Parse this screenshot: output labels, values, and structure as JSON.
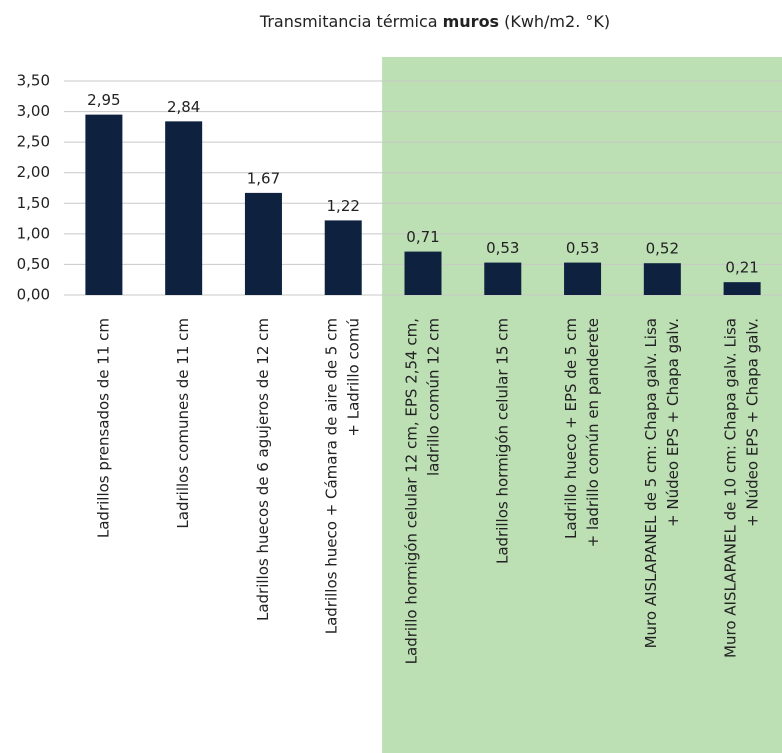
{
  "chart_data": {
    "type": "bar",
    "title": [
      "Transmitancia térmica",
      "muros",
      "(Kwh/m2. °K)"
    ],
    "categories": [
      [
        "Ladrillos prensados de 11 cm"
      ],
      [
        "Ladrillos comunes de 11 cm"
      ],
      [
        "Ladrillos huecos de 6 agujeros de 12 cm"
      ],
      [
        "Ladrillos hueco + Cámara de aire de 5 cm",
        "+ Ladrillo comú"
      ],
      [
        "Ladrillo hormigón celular 12 cm, EPS 2,54 cm,",
        "ladrillo común 12 cm"
      ],
      [
        "Ladrillos hormigón celular 15 cm"
      ],
      [
        "Ladrillo hueco + EPS de 5 cm",
        "+ ladrillo común en panderete"
      ],
      [
        "Muro AISLAPANEL de 5 cm: Chapa galv.  Lisa",
        "+ Núdeo EPS + Chapa galv."
      ],
      [
        "Muro AISLAPANEL de 10 cm: Chapa galv. Lisa",
        "+ Núdeo EPS + Chapa galv."
      ]
    ],
    "values": [
      2.95,
      2.84,
      1.67,
      1.22,
      0.71,
      0.53,
      0.53,
      0.52,
      0.21
    ],
    "value_labels": [
      "2,95",
      "2,84",
      "1,67",
      "1,22",
      "0,71",
      "0,53",
      "0,53",
      "0,52",
      "0,21"
    ],
    "color": "#0e213f",
    "ylim": [
      0,
      3.5
    ],
    "yticks": [
      {
        "value": 0,
        "label": "0,00"
      },
      {
        "value": 0.5,
        "label": "0,50"
      },
      {
        "value": 1,
        "label": "1,00"
      },
      {
        "value": 1.5,
        "label": "1,50"
      },
      {
        "value": 2,
        "label": "2,00"
      },
      {
        "value": 2.5,
        "label": "2,50"
      },
      {
        "value": 3,
        "label": "3,00"
      },
      {
        "value": 3.5,
        "label": "3,50"
      }
    ],
    "grid": true,
    "highlight_start": 4,
    "highlight_color": "#bcdfb3"
  }
}
